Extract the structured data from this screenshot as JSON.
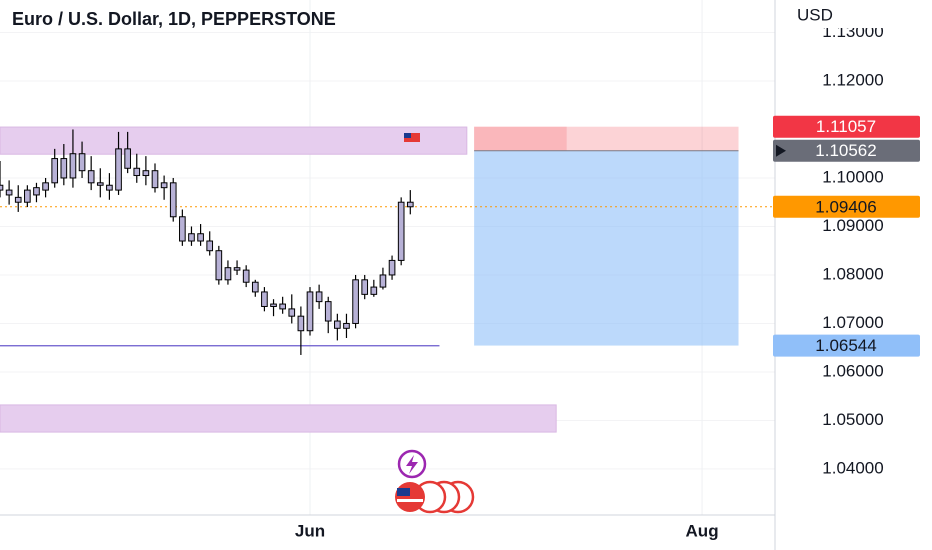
{
  "chart_data": {
    "type": "candlestick",
    "title": "Euro / U.S. Dollar, 1D, PEPPERSTONE",
    "currency": "USD",
    "x": [
      0,
      1,
      2,
      3,
      4,
      5,
      6,
      7,
      8,
      9,
      10,
      11,
      12,
      13,
      14,
      15,
      16,
      17,
      18,
      19,
      20,
      21,
      22,
      23,
      24,
      25,
      26,
      27,
      28,
      29,
      30,
      31,
      32,
      33,
      34,
      35,
      36,
      37,
      38,
      39,
      40,
      41,
      42,
      43,
      44,
      45
    ],
    "open": [
      1.0985,
      1.0975,
      1.096,
      1.095,
      1.0965,
      1.0975,
      1.099,
      1.104,
      1.1,
      1.105,
      1.1015,
      1.099,
      1.0985,
      1.0975,
      1.106,
      1.102,
      1.1005,
      1.1015,
      1.098,
      1.099,
      1.092,
      1.087,
      1.0885,
      1.087,
      1.085,
      1.079,
      1.0815,
      1.081,
      1.0785,
      1.0765,
      1.0735,
      1.074,
      1.073,
      1.0715,
      1.0685,
      1.0765,
      1.0745,
      1.0705,
      1.069,
      1.07,
      1.079,
      1.076,
      1.0775,
      1.08,
      1.083,
      1.095
    ],
    "high": [
      1.1035,
      1.0995,
      1.0985,
      1.0985,
      1.099,
      1.1,
      1.106,
      1.107,
      1.11,
      1.1075,
      1.1045,
      1.102,
      1.101,
      1.1095,
      1.1095,
      1.105,
      1.1045,
      1.103,
      1.1005,
      1.1,
      1.0935,
      1.09,
      1.0905,
      1.089,
      1.086,
      1.083,
      1.083,
      1.082,
      1.079,
      1.0775,
      1.075,
      1.0755,
      1.076,
      1.0735,
      1.0775,
      1.078,
      1.0755,
      1.072,
      1.072,
      1.08,
      1.08,
      1.079,
      1.0815,
      1.084,
      1.096,
      1.0975
    ],
    "low": [
      1.096,
      1.0945,
      1.093,
      1.094,
      1.095,
      1.096,
      1.098,
      1.0985,
      1.098,
      1.1,
      1.0975,
      1.096,
      1.0955,
      1.0965,
      1.101,
      1.099,
      1.0985,
      1.097,
      1.0955,
      1.091,
      1.086,
      1.086,
      1.086,
      1.084,
      1.078,
      1.078,
      1.08,
      1.0775,
      1.0755,
      1.0725,
      1.0715,
      1.072,
      1.07,
      1.0635,
      1.0675,
      1.073,
      1.068,
      1.0665,
      1.067,
      1.069,
      1.075,
      1.0755,
      1.077,
      1.079,
      1.082,
      1.0925
    ],
    "close": [
      1.0975,
      1.0965,
      1.095,
      1.0975,
      1.098,
      1.099,
      1.104,
      1.1,
      1.105,
      1.1015,
      1.099,
      1.0985,
      1.0975,
      1.106,
      1.102,
      1.1005,
      1.1015,
      1.098,
      1.099,
      1.092,
      1.087,
      1.0885,
      1.087,
      1.085,
      1.079,
      1.0815,
      1.081,
      1.0785,
      1.0765,
      1.0735,
      1.074,
      1.073,
      1.0715,
      1.0685,
      1.0765,
      1.0745,
      1.0705,
      1.069,
      1.07,
      1.079,
      1.076,
      1.0775,
      1.08,
      1.083,
      1.095,
      1.09406
    ],
    "color": "#b7b1d6",
    "xlim": [
      0,
      85
    ],
    "xticks": [
      {
        "value": 34,
        "label": "Jun"
      },
      {
        "value": 77,
        "label": "Aug"
      }
    ],
    "ylim": [
      1.0305,
      1.1367
    ],
    "yticks": [
      {
        "value": 1.04,
        "label": "1.04000"
      },
      {
        "value": 1.05,
        "label": "1.05000"
      },
      {
        "value": 1.06,
        "label": "1.06000"
      },
      {
        "value": 1.07,
        "label": "1.07000"
      },
      {
        "value": 1.08,
        "label": "1.08000"
      },
      {
        "value": 1.09,
        "label": "1.09000"
      },
      {
        "value": 1.1,
        "label": "1.10000"
      },
      {
        "value": 1.12,
        "label": "1.12000"
      },
      {
        "value": 1.13,
        "label": "1.13000"
      }
    ],
    "zones": [
      {
        "y": [
          1.1049,
          1.1105
        ],
        "x": [
          0,
          51.2
        ],
        "color": "#e6cdee"
      },
      {
        "y": [
          1.0476,
          1.0532
        ],
        "x": [
          0,
          61
        ],
        "color": "#e6cdee"
      }
    ],
    "hline": {
      "value": 1.0654,
      "x": [
        0,
        48.2
      ],
      "color": "#6a5acd"
    },
    "position": {
      "stop": 1.11057,
      "entry": 1.10562,
      "target": 1.06544,
      "x": [
        52,
        81
      ],
      "stop_color": "#f23645",
      "entry_color": "#6a6d78",
      "target_color": "#90bff9"
    },
    "last_color": "#ff9800"
  }
}
